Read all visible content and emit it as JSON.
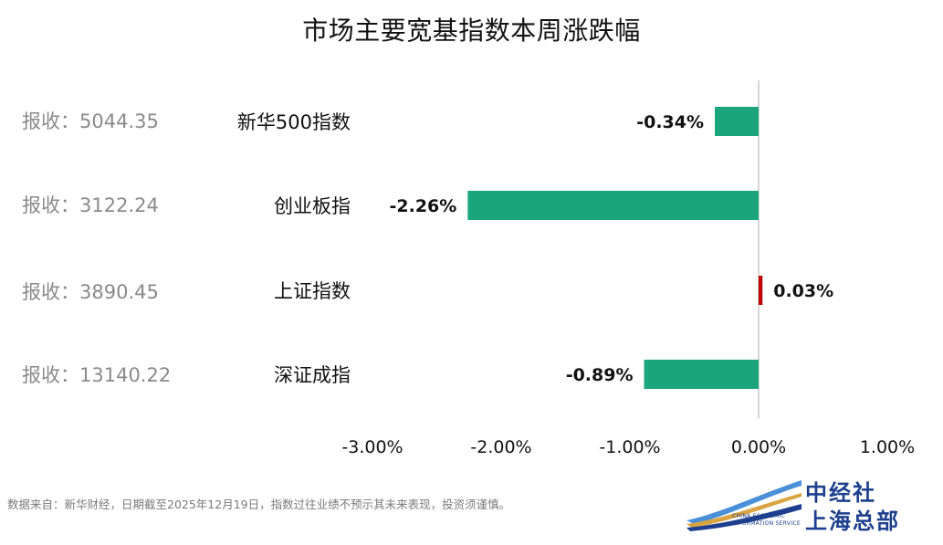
{
  "title": "市场主要宽基指数本周涨跌幅",
  "close_labels": [
    "报收：5044.35",
    "报收：3122.24",
    "报收：3890.45",
    "报收：13140.22"
  ],
  "chart_data": {
    "type": "bar",
    "orientation": "horizontal",
    "categories": [
      "新华500指数",
      "创业板指",
      "上证指数",
      "深证成指"
    ],
    "values": [
      -0.34,
      -2.26,
      0.03,
      -0.89
    ],
    "value_labels": [
      "-0.34%",
      "-2.26%",
      "0.03%",
      "-0.89%"
    ],
    "xlim": [
      -3.0,
      1.0
    ],
    "xticks": [
      "-3.00%",
      "-2.00%",
      "-1.00%",
      "0.00%",
      "1.00%"
    ],
    "colors": {
      "negative": "#1aa57a",
      "positive": "#c00000",
      "axis": "#c8c8c8"
    },
    "grid": false
  },
  "source": "数据来自：新华财经，日期截至2025年12月19日，指数过往业绩不预示其未来表现，投资须谨慎。",
  "logo": {
    "line1": "中经社",
    "line2": "上海总部",
    "en1": "CHINA ECONOMIC",
    "en2": "INFORMATION SERVICE",
    "colors": {
      "blue": "#1d3f8e",
      "light_blue": "#4a90d9",
      "gold": "#d9a441"
    }
  }
}
